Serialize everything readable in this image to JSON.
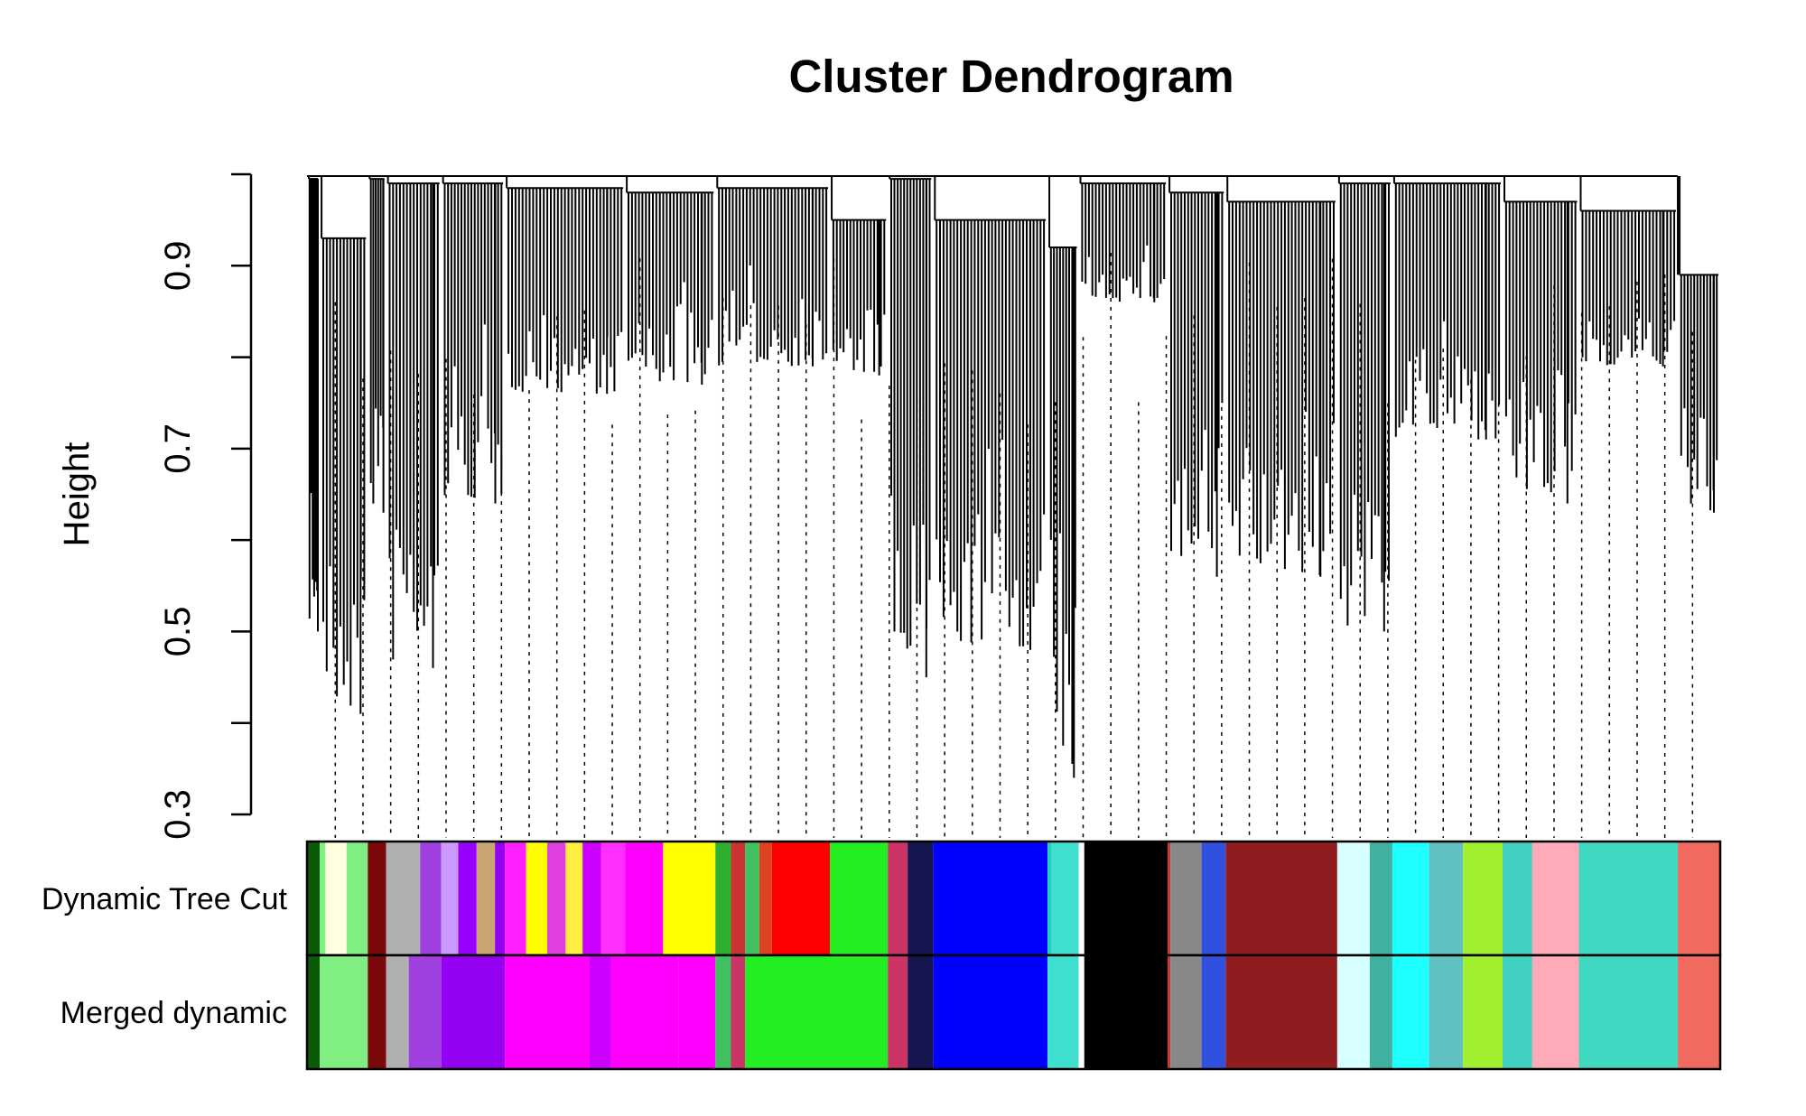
{
  "chart_data": {
    "type": "dendrogram",
    "title": "Cluster Dendrogram",
    "xlabel": "",
    "ylabel": "Height",
    "ylim": [
      0.3,
      1.0
    ],
    "yticks": [
      0.3,
      0.5,
      0.7,
      0.9
    ],
    "ytick_labels": [
      "0.3",
      "0.5",
      "0.7",
      "0.9"
    ],
    "color_rows": [
      {
        "label": "Dynamic Tree Cut",
        "segments": [
          {
            "start": 0.0,
            "end": 0.009,
            "color": "#0a5a0a"
          },
          {
            "start": 0.009,
            "end": 0.013,
            "color": "#80ee80"
          },
          {
            "start": 0.013,
            "end": 0.028,
            "color": "#fffee0"
          },
          {
            "start": 0.028,
            "end": 0.043,
            "color": "#80ee80"
          },
          {
            "start": 0.043,
            "end": 0.056,
            "color": "#7a0a0a"
          },
          {
            "start": 0.056,
            "end": 0.08,
            "color": "#b0b0b0"
          },
          {
            "start": 0.08,
            "end": 0.095,
            "color": "#a040e0"
          },
          {
            "start": 0.095,
            "end": 0.107,
            "color": "#cc99ff"
          },
          {
            "start": 0.107,
            "end": 0.12,
            "color": "#9900ff"
          },
          {
            "start": 0.12,
            "end": 0.133,
            "color": "#caa472"
          },
          {
            "start": 0.133,
            "end": 0.14,
            "color": "#9400f0"
          },
          {
            "start": 0.14,
            "end": 0.155,
            "color": "#ff20ff"
          },
          {
            "start": 0.155,
            "end": 0.17,
            "color": "#ffff00"
          },
          {
            "start": 0.17,
            "end": 0.183,
            "color": "#e040e0"
          },
          {
            "start": 0.183,
            "end": 0.195,
            "color": "#ffee40"
          },
          {
            "start": 0.195,
            "end": 0.208,
            "color": "#cc00ff"
          },
          {
            "start": 0.208,
            "end": 0.225,
            "color": "#ff30ff"
          },
          {
            "start": 0.225,
            "end": 0.252,
            "color": "#ff00ff"
          },
          {
            "start": 0.252,
            "end": 0.289,
            "color": "#ffff00"
          },
          {
            "start": 0.289,
            "end": 0.3,
            "color": "#30b030"
          },
          {
            "start": 0.3,
            "end": 0.31,
            "color": "#cc3333"
          },
          {
            "start": 0.31,
            "end": 0.32,
            "color": "#40c060"
          },
          {
            "start": 0.32,
            "end": 0.329,
            "color": "#dd4422"
          },
          {
            "start": 0.329,
            "end": 0.37,
            "color": "#ff0000"
          },
          {
            "start": 0.37,
            "end": 0.411,
            "color": "#22ee22"
          },
          {
            "start": 0.411,
            "end": 0.425,
            "color": "#cc3366"
          },
          {
            "start": 0.425,
            "end": 0.443,
            "color": "#151550"
          },
          {
            "start": 0.443,
            "end": 0.524,
            "color": "#0000ff"
          },
          {
            "start": 0.524,
            "end": 0.527,
            "color": "#20d0c0"
          },
          {
            "start": 0.527,
            "end": 0.546,
            "color": "#40e0d0"
          },
          {
            "start": 0.546,
            "end": 0.55,
            "color": "#ffffff"
          },
          {
            "start": 0.55,
            "end": 0.609,
            "color": "#000000"
          },
          {
            "start": 0.609,
            "end": 0.611,
            "color": "#cc3333"
          },
          {
            "start": 0.611,
            "end": 0.633,
            "color": "#888888"
          },
          {
            "start": 0.633,
            "end": 0.65,
            "color": "#3050e0"
          },
          {
            "start": 0.65,
            "end": 0.729,
            "color": "#901c20"
          },
          {
            "start": 0.729,
            "end": 0.752,
            "color": "#d8ffff"
          },
          {
            "start": 0.752,
            "end": 0.768,
            "color": "#40b0a0"
          },
          {
            "start": 0.768,
            "end": 0.794,
            "color": "#20ffff"
          },
          {
            "start": 0.794,
            "end": 0.818,
            "color": "#60c0c0"
          },
          {
            "start": 0.818,
            "end": 0.846,
            "color": "#a0f030"
          },
          {
            "start": 0.846,
            "end": 0.867,
            "color": "#40d0c0"
          },
          {
            "start": 0.867,
            "end": 0.9,
            "color": "#ffaab8"
          },
          {
            "start": 0.9,
            "end": 0.97,
            "color": "#40d8c0"
          },
          {
            "start": 0.97,
            "end": 1.0,
            "color": "#f06a60"
          }
        ]
      },
      {
        "label": "Merged dynamic",
        "segments": [
          {
            "start": 0.0,
            "end": 0.009,
            "color": "#0a5a0a"
          },
          {
            "start": 0.009,
            "end": 0.043,
            "color": "#80ee80"
          },
          {
            "start": 0.043,
            "end": 0.056,
            "color": "#7a0a0a"
          },
          {
            "start": 0.056,
            "end": 0.072,
            "color": "#b0b0b0"
          },
          {
            "start": 0.072,
            "end": 0.095,
            "color": "#a040e0"
          },
          {
            "start": 0.095,
            "end": 0.14,
            "color": "#9400f0"
          },
          {
            "start": 0.14,
            "end": 0.2,
            "color": "#ff00ff"
          },
          {
            "start": 0.2,
            "end": 0.215,
            "color": "#cc00ff"
          },
          {
            "start": 0.215,
            "end": 0.263,
            "color": "#ff00ff"
          },
          {
            "start": 0.263,
            "end": 0.289,
            "color": "#ff00ff"
          },
          {
            "start": 0.289,
            "end": 0.3,
            "color": "#40c060"
          },
          {
            "start": 0.3,
            "end": 0.31,
            "color": "#cc3366"
          },
          {
            "start": 0.31,
            "end": 0.411,
            "color": "#22ee22"
          },
          {
            "start": 0.411,
            "end": 0.425,
            "color": "#cc3366"
          },
          {
            "start": 0.425,
            "end": 0.443,
            "color": "#151550"
          },
          {
            "start": 0.443,
            "end": 0.524,
            "color": "#0000ff"
          },
          {
            "start": 0.524,
            "end": 0.546,
            "color": "#40e0d0"
          },
          {
            "start": 0.546,
            "end": 0.55,
            "color": "#ffffff"
          },
          {
            "start": 0.55,
            "end": 0.609,
            "color": "#000000"
          },
          {
            "start": 0.609,
            "end": 0.611,
            "color": "#cc3333"
          },
          {
            "start": 0.611,
            "end": 0.633,
            "color": "#888888"
          },
          {
            "start": 0.633,
            "end": 0.65,
            "color": "#3050e0"
          },
          {
            "start": 0.65,
            "end": 0.729,
            "color": "#901c20"
          },
          {
            "start": 0.729,
            "end": 0.752,
            "color": "#d8ffff"
          },
          {
            "start": 0.752,
            "end": 0.768,
            "color": "#40b0a0"
          },
          {
            "start": 0.768,
            "end": 0.794,
            "color": "#20ffff"
          },
          {
            "start": 0.794,
            "end": 0.818,
            "color": "#60c0c0"
          },
          {
            "start": 0.818,
            "end": 0.846,
            "color": "#a0f030"
          },
          {
            "start": 0.846,
            "end": 0.867,
            "color": "#40d0c0"
          },
          {
            "start": 0.867,
            "end": 0.9,
            "color": "#ffaab8"
          },
          {
            "start": 0.9,
            "end": 0.97,
            "color": "#40d8c0"
          },
          {
            "start": 0.97,
            "end": 1.0,
            "color": "#f06a60"
          }
        ]
      }
    ],
    "clusters": [
      {
        "start": 0.0,
        "end": 0.009,
        "top": 0.995,
        "bottom": 0.5
      },
      {
        "start": 0.009,
        "end": 0.043,
        "top": 0.93,
        "bottom": 0.41
      },
      {
        "start": 0.043,
        "end": 0.056,
        "top": 0.995,
        "bottom": 0.63
      },
      {
        "start": 0.056,
        "end": 0.095,
        "top": 0.99,
        "bottom": 0.46
      },
      {
        "start": 0.095,
        "end": 0.14,
        "top": 0.99,
        "bottom": 0.64
      },
      {
        "start": 0.14,
        "end": 0.225,
        "top": 0.985,
        "bottom": 0.76
      },
      {
        "start": 0.225,
        "end": 0.289,
        "top": 0.98,
        "bottom": 0.77
      },
      {
        "start": 0.289,
        "end": 0.37,
        "top": 0.985,
        "bottom": 0.79
      },
      {
        "start": 0.37,
        "end": 0.411,
        "top": 0.95,
        "bottom": 0.78
      },
      {
        "start": 0.411,
        "end": 0.443,
        "top": 0.995,
        "bottom": 0.45
      },
      {
        "start": 0.443,
        "end": 0.524,
        "top": 0.95,
        "bottom": 0.48
      },
      {
        "start": 0.524,
        "end": 0.546,
        "top": 0.92,
        "bottom": 0.34
      },
      {
        "start": 0.546,
        "end": 0.609,
        "top": 0.99,
        "bottom": 0.86
      },
      {
        "start": 0.609,
        "end": 0.65,
        "top": 0.98,
        "bottom": 0.56
      },
      {
        "start": 0.65,
        "end": 0.729,
        "top": 0.97,
        "bottom": 0.56
      },
      {
        "start": 0.729,
        "end": 0.768,
        "top": 0.99,
        "bottom": 0.5
      },
      {
        "start": 0.768,
        "end": 0.846,
        "top": 0.99,
        "bottom": 0.71
      },
      {
        "start": 0.846,
        "end": 0.9,
        "top": 0.97,
        "bottom": 0.64
      },
      {
        "start": 0.9,
        "end": 0.97,
        "top": 0.96,
        "bottom": 0.79
      },
      {
        "start": 0.97,
        "end": 1.0,
        "top": 0.89,
        "bottom": 0.63
      }
    ],
    "grid": false,
    "legend": "none"
  }
}
